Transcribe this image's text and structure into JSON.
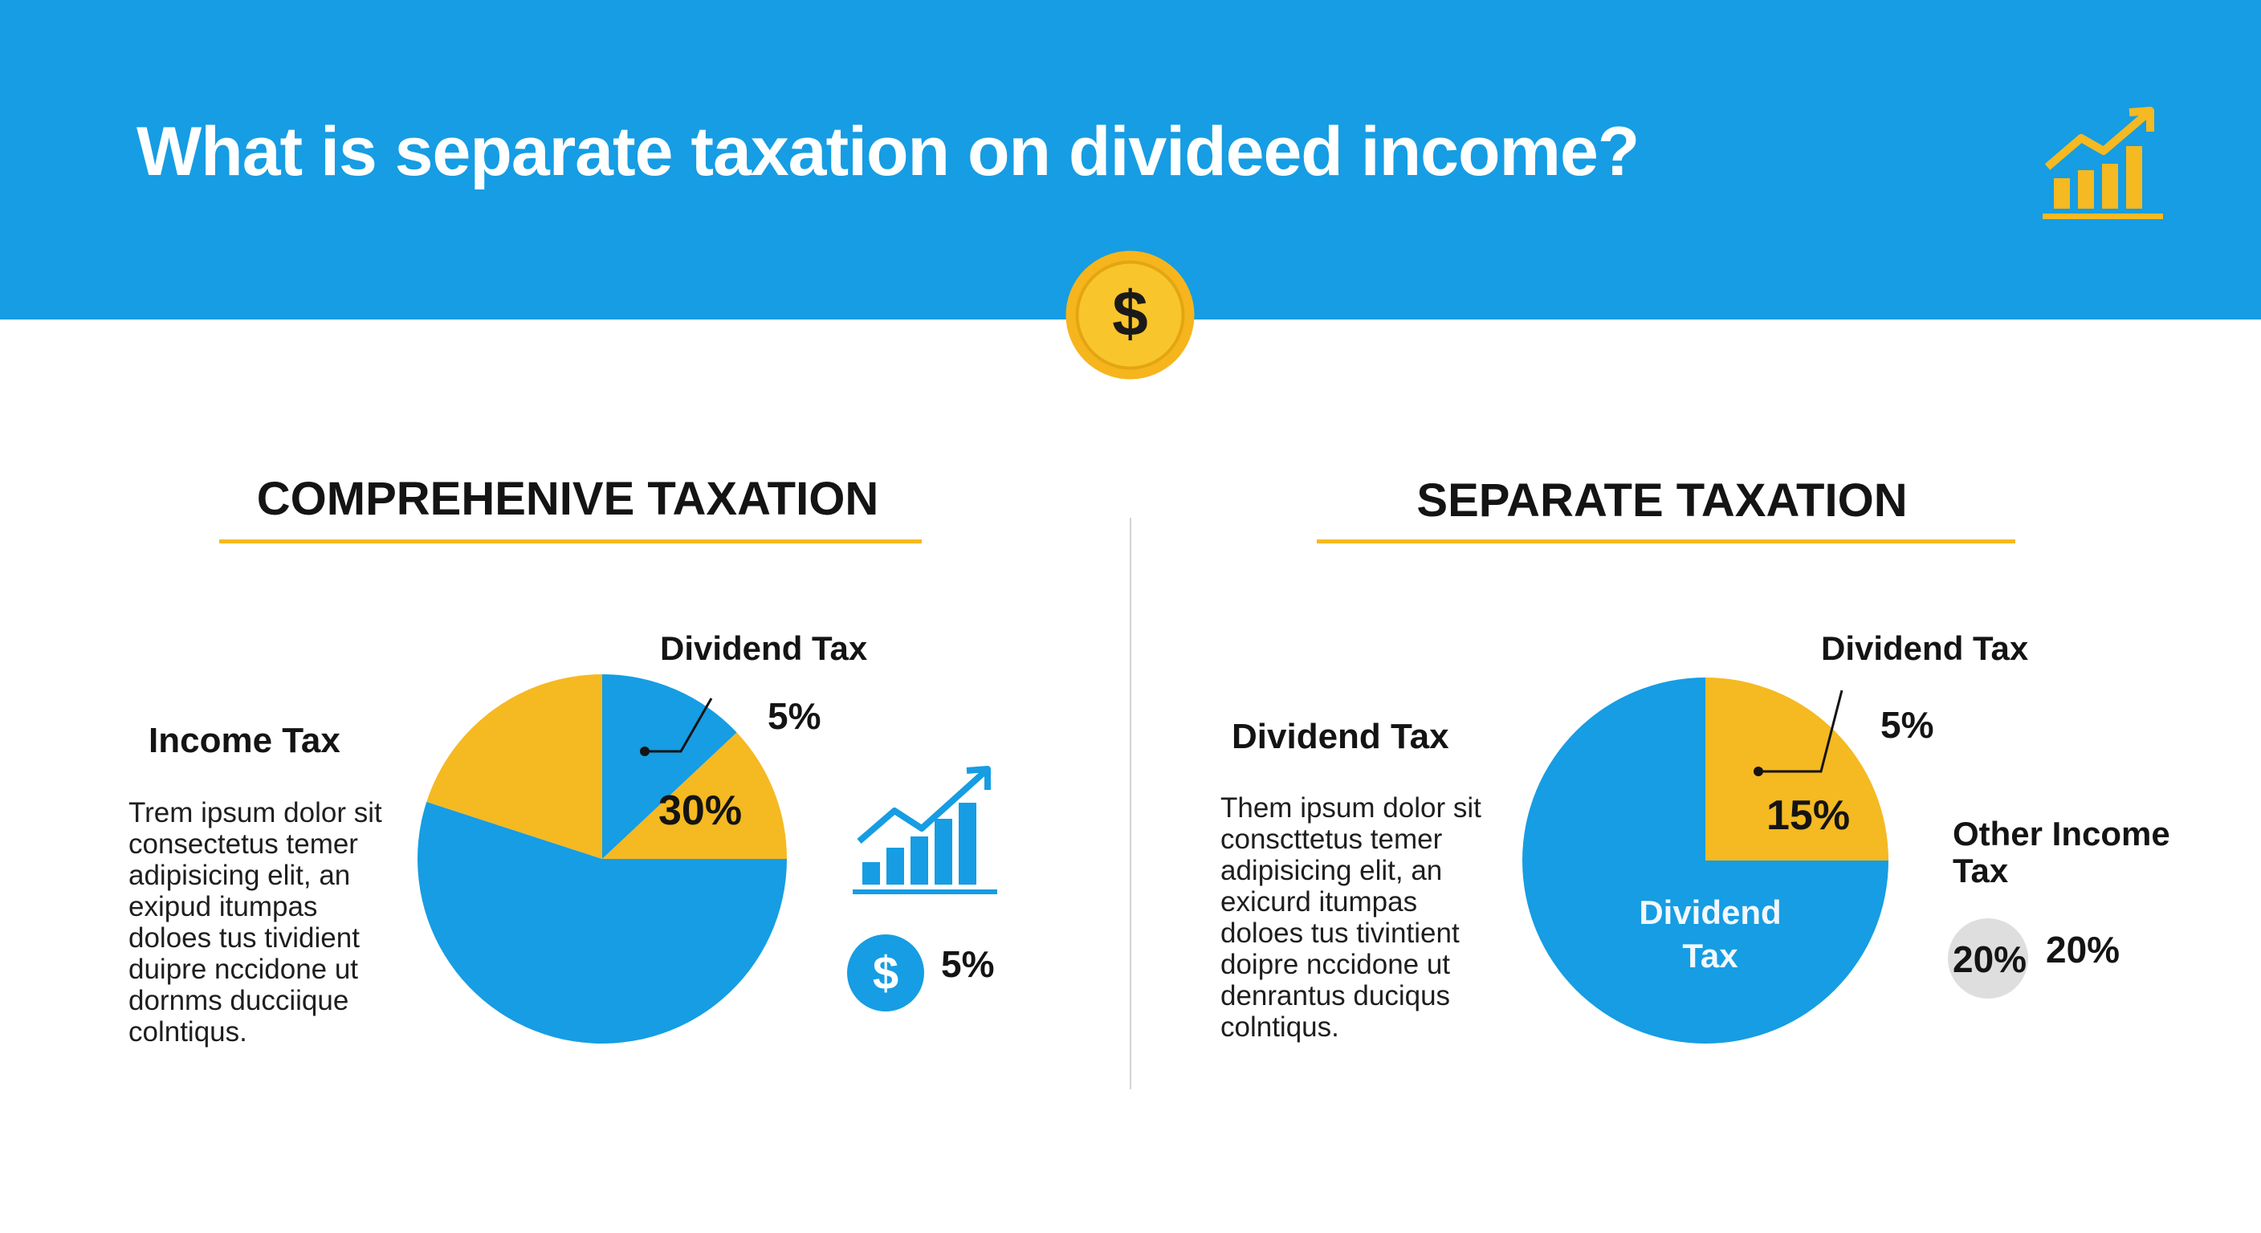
{
  "header": {
    "title": "What is separate taxation on divideed income?",
    "icons": [
      "dollar-coin-icon",
      "growth-chart-icon"
    ]
  },
  "colors": {
    "header_bg": "#169de3",
    "blue": "#169de3",
    "yellow": "#f5b921",
    "coin": "#f6b51c",
    "text": "#141414"
  },
  "left": {
    "title": "COMPREHENIVE TAXATION",
    "side_label": "Income Tax",
    "body_text": "Trem ipsum dolor sit\nconsectetus temer\nadipisicing elit, an\nexipud itumpas\ndoloes tus tividient\nduipre nccidone ut\ndornms ducciique\ncolntiqus.",
    "callout_label": "Dividend Tax",
    "callout_pct": "5%",
    "inner_pct": "30%",
    "extra_pct": "5%",
    "icons": [
      "growth-chart-icon",
      "dollar-circle-icon"
    ]
  },
  "right": {
    "title": "SEPARATE TAXATION",
    "side_label": "Dividend Tax",
    "body_text": "Them ipsum dolor sit\nconscttetus temer\nadipisicing elit, an\nexicurd itumpas\ndoloes tus tivintient\ndoipre nccidone ut\ndenrantus duciqus\ncolntiqus.",
    "callout_label": "Dividend Tax",
    "callout_pct": "5%",
    "inner_pct": "15%",
    "inner_label": "Dividend\nTax",
    "other_label": "Other Income\nTax",
    "badge_pct": "20%",
    "other_pct": "20%"
  },
  "chart_data": [
    {
      "type": "pie",
      "title": "COMPREHENIVE TAXATION",
      "slices": [
        {
          "label": "30%",
          "value": 13,
          "color": "#169de3"
        },
        {
          "label": "",
          "value": 12,
          "color": "#f5b921"
        },
        {
          "label": "",
          "value": 55,
          "color": "#169de3"
        },
        {
          "label": "",
          "value": 20,
          "color": "#f5b921"
        }
      ]
    },
    {
      "type": "pie",
      "title": "SEPARATE TAXATION",
      "slices": [
        {
          "label": "15%",
          "value": 25,
          "color": "#f5b921"
        },
        {
          "label": "Dividend Tax",
          "value": 75,
          "color": "#169de3"
        }
      ]
    }
  ]
}
